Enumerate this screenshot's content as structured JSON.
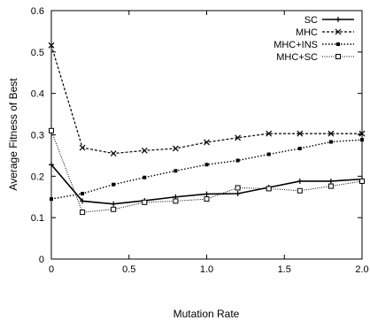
{
  "chart_data": {
    "type": "line",
    "title": "",
    "xlabel": "Mutation Rate",
    "ylabel": "Average Fitness of Best",
    "xlim": [
      0,
      2.0
    ],
    "ylim": [
      0,
      0.6
    ],
    "x_ticks": [
      0,
      0.5,
      1.0,
      1.5,
      2.0
    ],
    "x_tick_labels": [
      "0",
      "0.5",
      "1.0",
      "1.5",
      "2.0"
    ],
    "y_ticks": [
      0,
      0.1,
      0.2,
      0.3,
      0.4,
      0.5,
      0.6
    ],
    "y_tick_labels": [
      "0",
      "0.1",
      "0.2",
      "0.3",
      "0.4",
      "0.5",
      "0.6"
    ],
    "grid": false,
    "legend_position": "top-right",
    "x": [
      0,
      0.2,
      0.4,
      0.6,
      0.8,
      1.0,
      1.2,
      1.4,
      1.6,
      1.8,
      2.0
    ],
    "series": [
      {
        "name": "SC",
        "marker": "plus",
        "dash": "solid",
        "values": [
          0.228,
          0.14,
          0.133,
          0.141,
          0.15,
          0.157,
          0.158,
          0.173,
          0.188,
          0.188,
          0.193
        ]
      },
      {
        "name": "MHC",
        "marker": "cross",
        "dash": "dashed",
        "values": [
          0.516,
          0.269,
          0.255,
          0.262,
          0.267,
          0.282,
          0.293,
          0.303,
          0.303,
          0.303,
          0.303
        ]
      },
      {
        "name": "MHC+INS",
        "marker": "filled-square",
        "dash": "dotted",
        "values": [
          0.145,
          0.158,
          0.18,
          0.197,
          0.213,
          0.228,
          0.238,
          0.253,
          0.267,
          0.283,
          0.288
        ]
      },
      {
        "name": "MHC+SC",
        "marker": "open-square",
        "dash": "fine-dotted",
        "values": [
          0.31,
          0.113,
          0.12,
          0.137,
          0.14,
          0.145,
          0.172,
          0.17,
          0.165,
          0.176,
          0.188
        ]
      }
    ]
  }
}
